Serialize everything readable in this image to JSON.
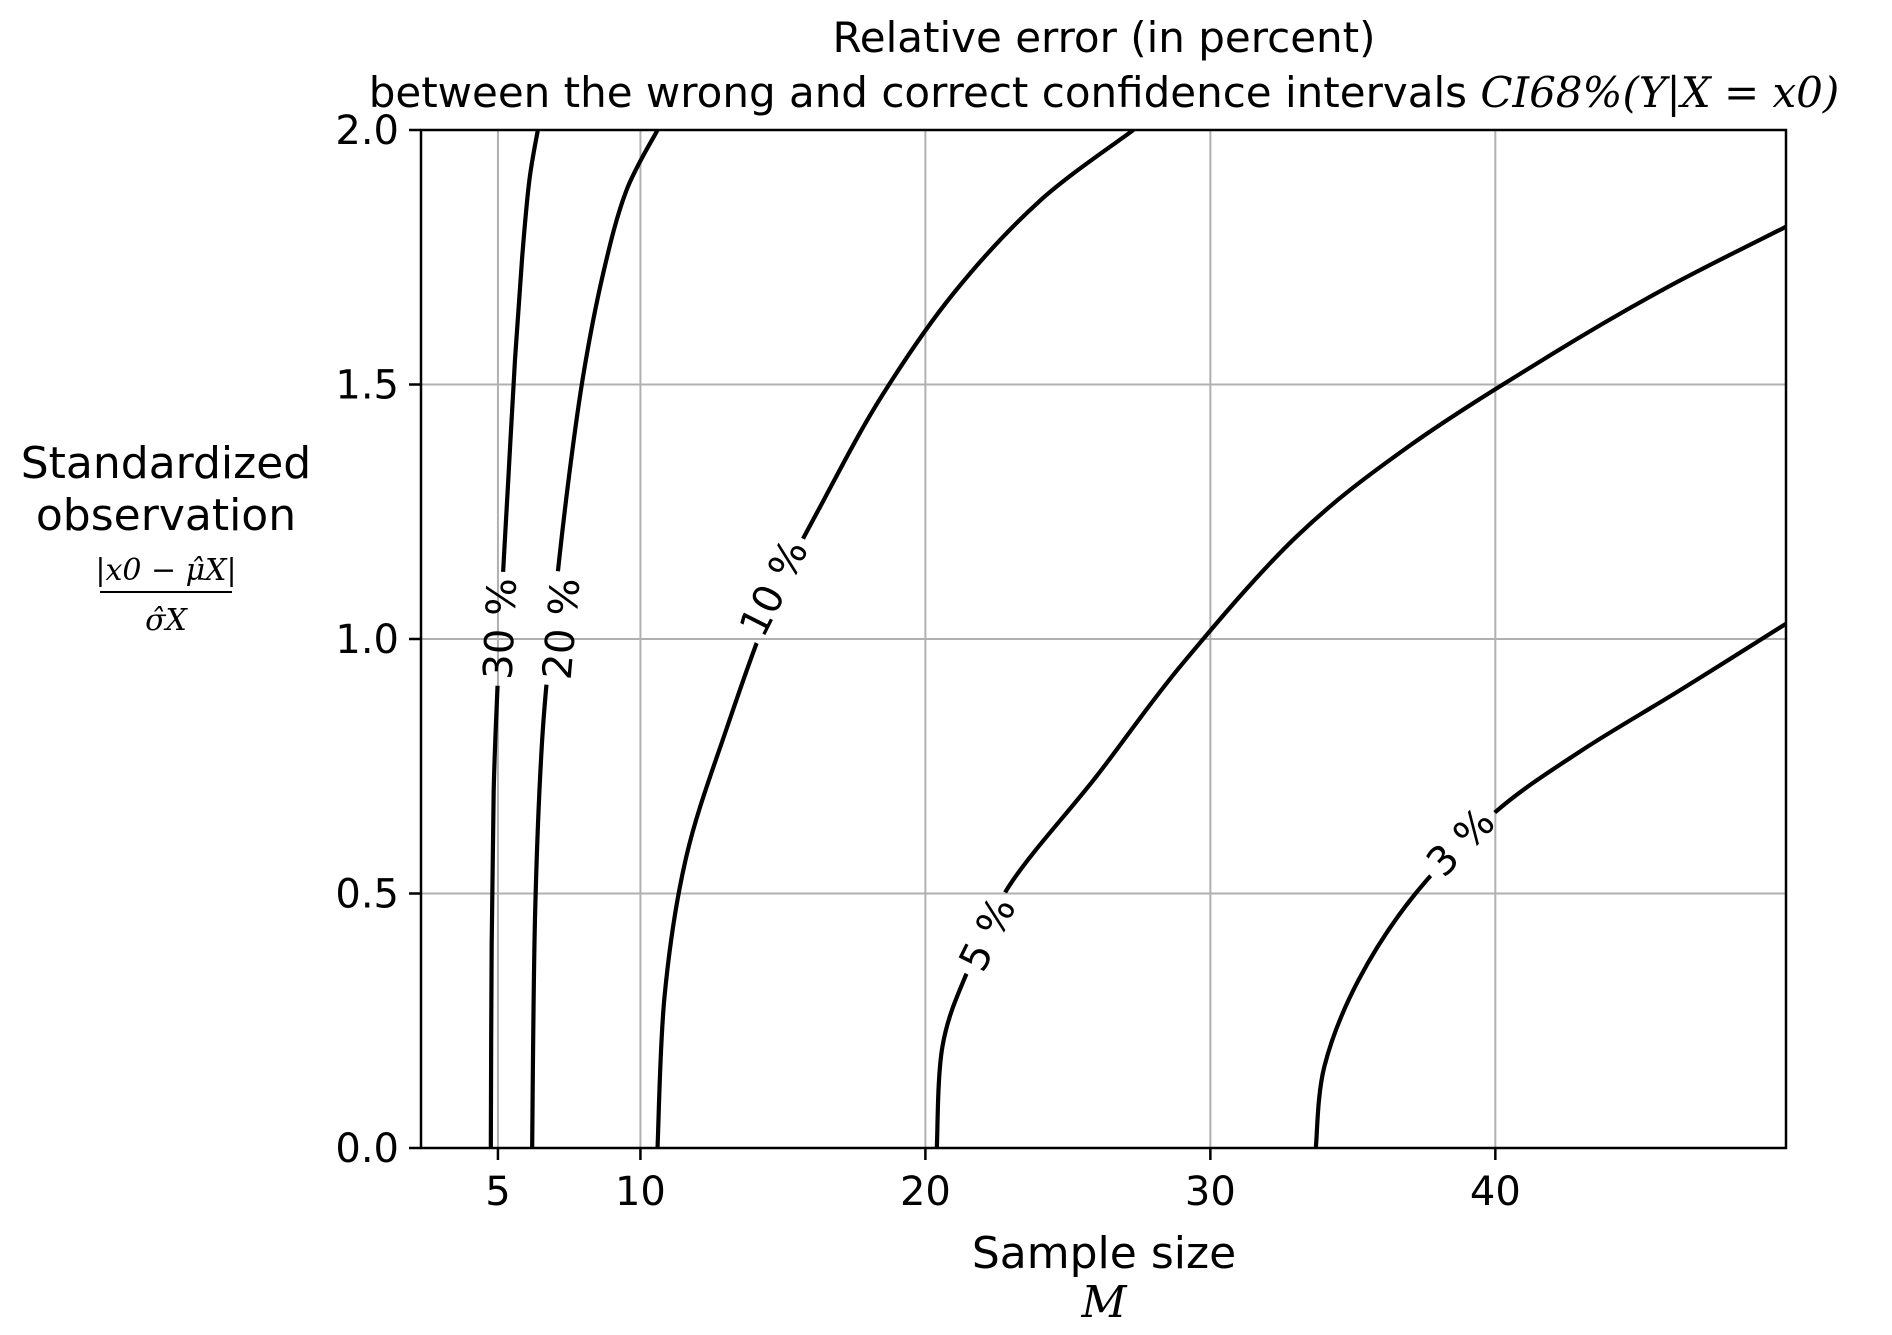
{
  "chart_data": {
    "type": "line",
    "subtype": "contour",
    "title": {
      "line1": "Relative error (in percent)",
      "line2_prefix": "between the wrong and correct confidence intervals ",
      "line2_math": "CI68%(Y|X = x0)"
    },
    "xlabel": {
      "line1": "Sample size",
      "line2": "M"
    },
    "ylabel": {
      "line1": "Standardized",
      "line2": "observation",
      "fraction_numerator": "|x0 − μ̂X|",
      "fraction_denominator": "σ̂X"
    },
    "xlim": [
      2.3,
      50.2
    ],
    "ylim": [
      0,
      2
    ],
    "x_ticks": [
      5,
      10,
      20,
      30,
      40
    ],
    "y_ticks": [
      0.0,
      0.5,
      1.0,
      1.5,
      2.0
    ],
    "x_tick_labels": [
      "5",
      "10",
      "20",
      "30",
      "40"
    ],
    "y_tick_labels": [
      "0.0",
      "0.5",
      "1.0",
      "1.5",
      "2.0"
    ],
    "grid": true,
    "line_color": "#000000",
    "grid_color": "#b0b0b0",
    "series": [
      {
        "name": "30 %",
        "label_at": {
          "x": 5.1,
          "y": 1.02
        },
        "points": [
          [
            4.75,
            0.0
          ],
          [
            4.78,
            0.4
          ],
          [
            4.85,
            0.7
          ],
          [
            4.98,
            0.9
          ],
          [
            5.1,
            1.05
          ],
          [
            5.35,
            1.3
          ],
          [
            5.6,
            1.55
          ],
          [
            5.85,
            1.75
          ],
          [
            6.1,
            1.9
          ],
          [
            6.4,
            2.0
          ]
        ]
      },
      {
        "name": "20 %",
        "label_at": {
          "x": 7.25,
          "y": 1.02
        },
        "points": [
          [
            6.2,
            0.0
          ],
          [
            6.3,
            0.45
          ],
          [
            6.55,
            0.8
          ],
          [
            6.95,
            1.05
          ],
          [
            7.45,
            1.3
          ],
          [
            8.0,
            1.52
          ],
          [
            8.7,
            1.72
          ],
          [
            9.5,
            1.88
          ],
          [
            10.6,
            2.0
          ]
        ]
      },
      {
        "name": "10 %",
        "label_at": {
          "x": 14.7,
          "y": 1.1
        },
        "points": [
          [
            10.6,
            0.0
          ],
          [
            10.85,
            0.3
          ],
          [
            11.6,
            0.57
          ],
          [
            13.0,
            0.82
          ],
          [
            14.7,
            1.08
          ],
          [
            16.5,
            1.28
          ],
          [
            18.5,
            1.48
          ],
          [
            21.0,
            1.68
          ],
          [
            24.0,
            1.86
          ],
          [
            27.3,
            2.0
          ]
        ]
      },
      {
        "name": "5 %",
        "label_at": {
          "x": 22.2,
          "y": 0.42
        },
        "points": [
          [
            20.4,
            0.0
          ],
          [
            20.6,
            0.2
          ],
          [
            21.5,
            0.35
          ],
          [
            23.0,
            0.52
          ],
          [
            26.0,
            0.73
          ],
          [
            29.0,
            0.95
          ],
          [
            33.0,
            1.2
          ],
          [
            37.0,
            1.38
          ],
          [
            42.0,
            1.56
          ],
          [
            46.0,
            1.69
          ],
          [
            50.2,
            1.81
          ]
        ]
      },
      {
        "name": "3 %",
        "label_at": {
          "x": 38.8,
          "y": 0.6
        },
        "points": [
          [
            33.7,
            0.0
          ],
          [
            34.0,
            0.16
          ],
          [
            35.2,
            0.33
          ],
          [
            37.2,
            0.5
          ],
          [
            40.0,
            0.66
          ],
          [
            43.0,
            0.78
          ],
          [
            46.5,
            0.9
          ],
          [
            50.2,
            1.03
          ]
        ]
      }
    ]
  }
}
